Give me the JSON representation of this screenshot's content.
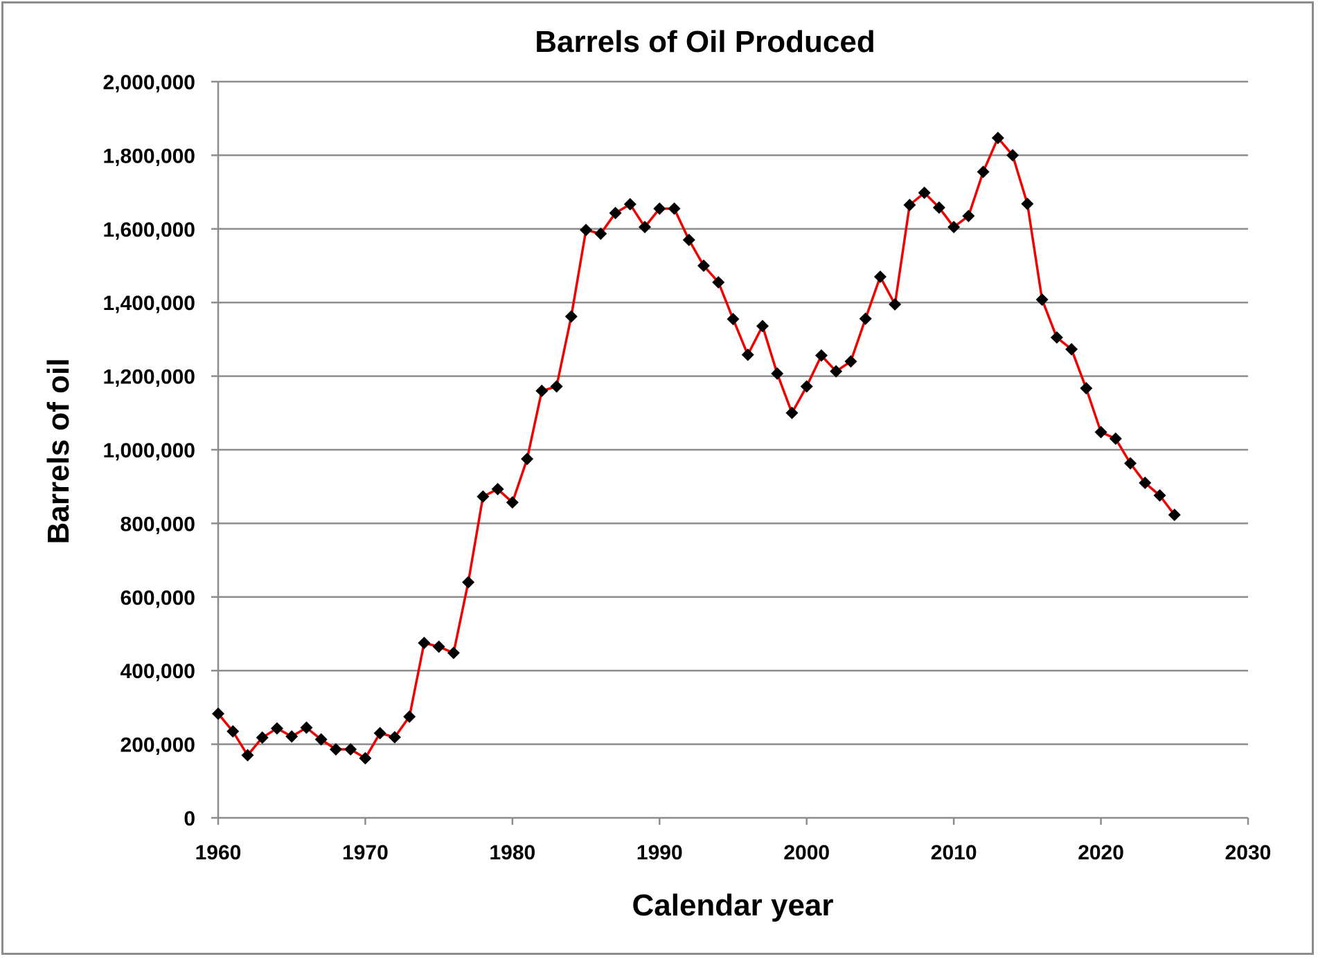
{
  "chart_data": {
    "type": "line",
    "title": "Barrels of Oil Produced",
    "xlabel": "Calendar year",
    "ylabel": "Barrels of oil",
    "xlim": [
      1960,
      2030
    ],
    "ylim": [
      0,
      2000000
    ],
    "x_ticks": [
      1960,
      1970,
      1980,
      1990,
      2000,
      2010,
      2020,
      2030
    ],
    "x_tick_labels": [
      "1960",
      "1970",
      "1980",
      "1990",
      "2000",
      "2010",
      "2020",
      "2030"
    ],
    "y_ticks": [
      0,
      200000,
      400000,
      600000,
      800000,
      1000000,
      1200000,
      1400000,
      1600000,
      1800000,
      2000000
    ],
    "y_tick_labels": [
      "0",
      "200,000",
      "400,000",
      "600,000",
      "800,000",
      "1,000,000",
      "1,200,000",
      "1,400,000",
      "1,600,000",
      "1,800,000",
      "2,000,000"
    ],
    "grid": "horizontal",
    "legend": "none",
    "line_color": "#ee0000",
    "marker_color": "#000000",
    "marker": "diamond",
    "x": [
      1960,
      1961,
      1962,
      1963,
      1964,
      1965,
      1966,
      1967,
      1968,
      1969,
      1970,
      1971,
      1972,
      1973,
      1974,
      1975,
      1976,
      1977,
      1978,
      1979,
      1980,
      1981,
      1982,
      1983,
      1984,
      1985,
      1986,
      1987,
      1988,
      1989,
      1990,
      1991,
      1992,
      1993,
      1994,
      1995,
      1996,
      1997,
      1998,
      1999,
      2000,
      2001,
      2002,
      2003,
      2004,
      2005,
      2006,
      2007,
      2008,
      2009,
      2010,
      2011,
      2012,
      2013,
      2014,
      2015,
      2016,
      2017,
      2018,
      2019,
      2020,
      2021,
      2022,
      2023,
      2024,
      2025
    ],
    "y": [
      283000,
      235000,
      170000,
      218000,
      243000,
      221000,
      245000,
      213000,
      186000,
      186000,
      162000,
      230000,
      219000,
      275000,
      475000,
      465000,
      448000,
      640000,
      873000,
      893000,
      857000,
      975000,
      1160000,
      1172000,
      1362000,
      1597000,
      1587000,
      1643000,
      1667000,
      1605000,
      1655000,
      1655000,
      1570000,
      1500000,
      1455000,
      1355000,
      1258000,
      1336000,
      1207000,
      1100000,
      1172000,
      1256000,
      1213000,
      1240000,
      1356000,
      1470000,
      1395000,
      1665000,
      1698000,
      1658000,
      1605000,
      1635000,
      1755000,
      1847000,
      1800000,
      1668000,
      1408000,
      1305000,
      1273000,
      1167000,
      1048000,
      1030000,
      963000,
      910000,
      876000,
      823000
    ]
  }
}
